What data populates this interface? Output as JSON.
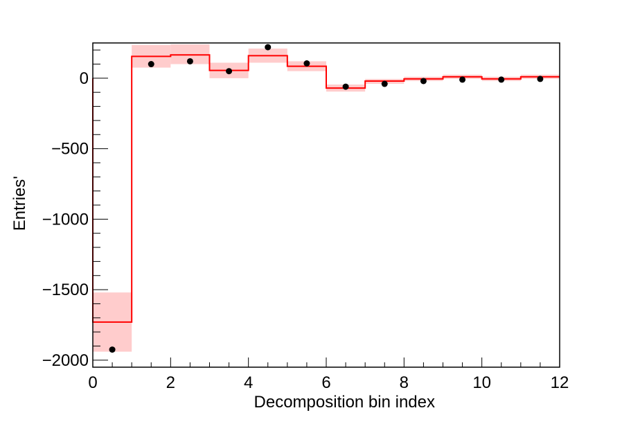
{
  "chart_data": {
    "type": "step-histogram",
    "xlabel": "Decomposition bin index",
    "ylabel": "Entries'",
    "xlim": [
      0,
      12
    ],
    "ylim": [
      -2050,
      250
    ],
    "x_ticks": [
      0,
      2,
      4,
      6,
      8,
      10,
      12
    ],
    "y_ticks": [
      -2000,
      -1500,
      -1000,
      -500,
      0
    ],
    "x_tick_labels": [
      "0",
      "2",
      "4",
      "6",
      "8",
      "10",
      "12"
    ],
    "y_tick_labels": [
      "−2000",
      "−1500",
      "−1000",
      "−500",
      "0"
    ],
    "bin_edges": [
      0,
      1,
      2,
      3,
      4,
      5,
      6,
      7,
      8,
      9,
      10,
      11,
      12
    ],
    "histogram": {
      "color": "#ff0000",
      "values": [
        -1730,
        155,
        165,
        55,
        160,
        85,
        -70,
        -20,
        -5,
        10,
        -5,
        10
      ]
    },
    "uncertainty_band": {
      "color": "#ffcccc",
      "low": [
        -1940,
        75,
        100,
        0,
        110,
        50,
        -95,
        -40,
        -20,
        -5,
        -20,
        -5
      ],
      "high": [
        -1520,
        235,
        240,
        110,
        210,
        120,
        -45,
        -5,
        10,
        25,
        10,
        25
      ]
    },
    "data_points": {
      "color": "#000000",
      "x": [
        0.5,
        1.5,
        2.5,
        3.5,
        4.5,
        5.5,
        6.5,
        7.5,
        8.5,
        9.5,
        10.5,
        11.5
      ],
      "y": [
        -1925,
        100,
        120,
        50,
        220,
        105,
        -60,
        -40,
        -20,
        -10,
        -10,
        -5
      ]
    },
    "grid": false
  }
}
